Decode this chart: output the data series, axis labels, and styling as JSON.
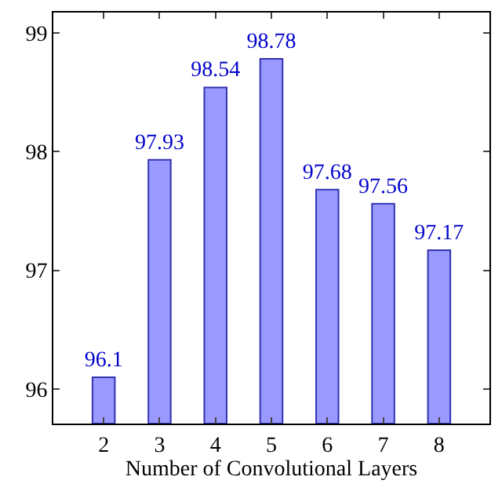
{
  "chart_data": {
    "type": "bar",
    "xlabel": "Number of Convolutional Layers",
    "x": [
      2,
      3,
      4,
      5,
      6,
      7,
      8
    ],
    "values": [
      96.1,
      97.93,
      98.54,
      98.78,
      97.68,
      97.56,
      97.17
    ],
    "color": "#9999ff",
    "data_labels": true,
    "xlim": [
      1.1,
      8.9
    ],
    "xticks": [
      2,
      3,
      4,
      5,
      6,
      7,
      8
    ],
    "ylim": [
      95.71,
      99.17
    ],
    "yticks": [
      96,
      97,
      98,
      99
    ]
  }
}
